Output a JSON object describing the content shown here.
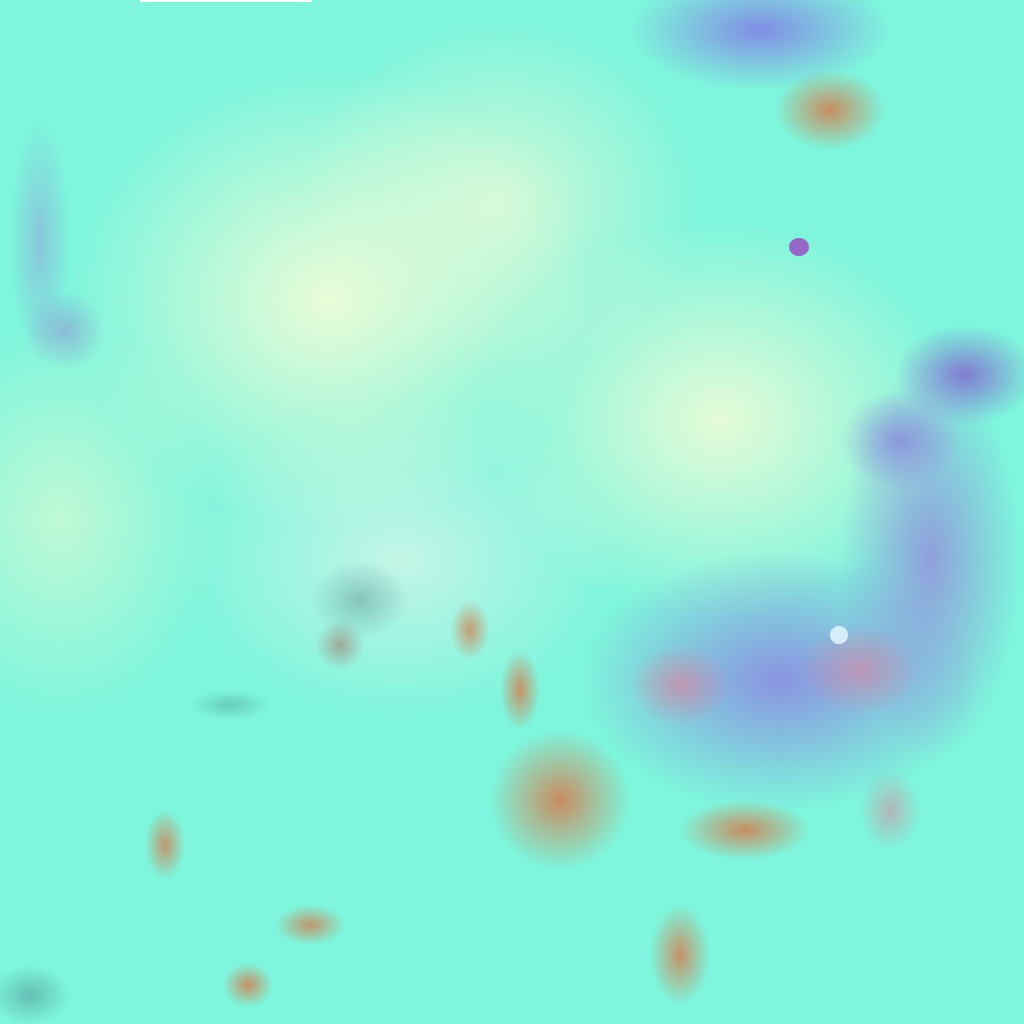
{
  "image": {
    "colors": {
      "base_cyan": "#7ef5dc",
      "pale_cloud": "#e8fbd8",
      "land_brown": "#c8875a",
      "storm_purple": "#8f86e0",
      "storm_red": "#e07a9a"
    }
  }
}
